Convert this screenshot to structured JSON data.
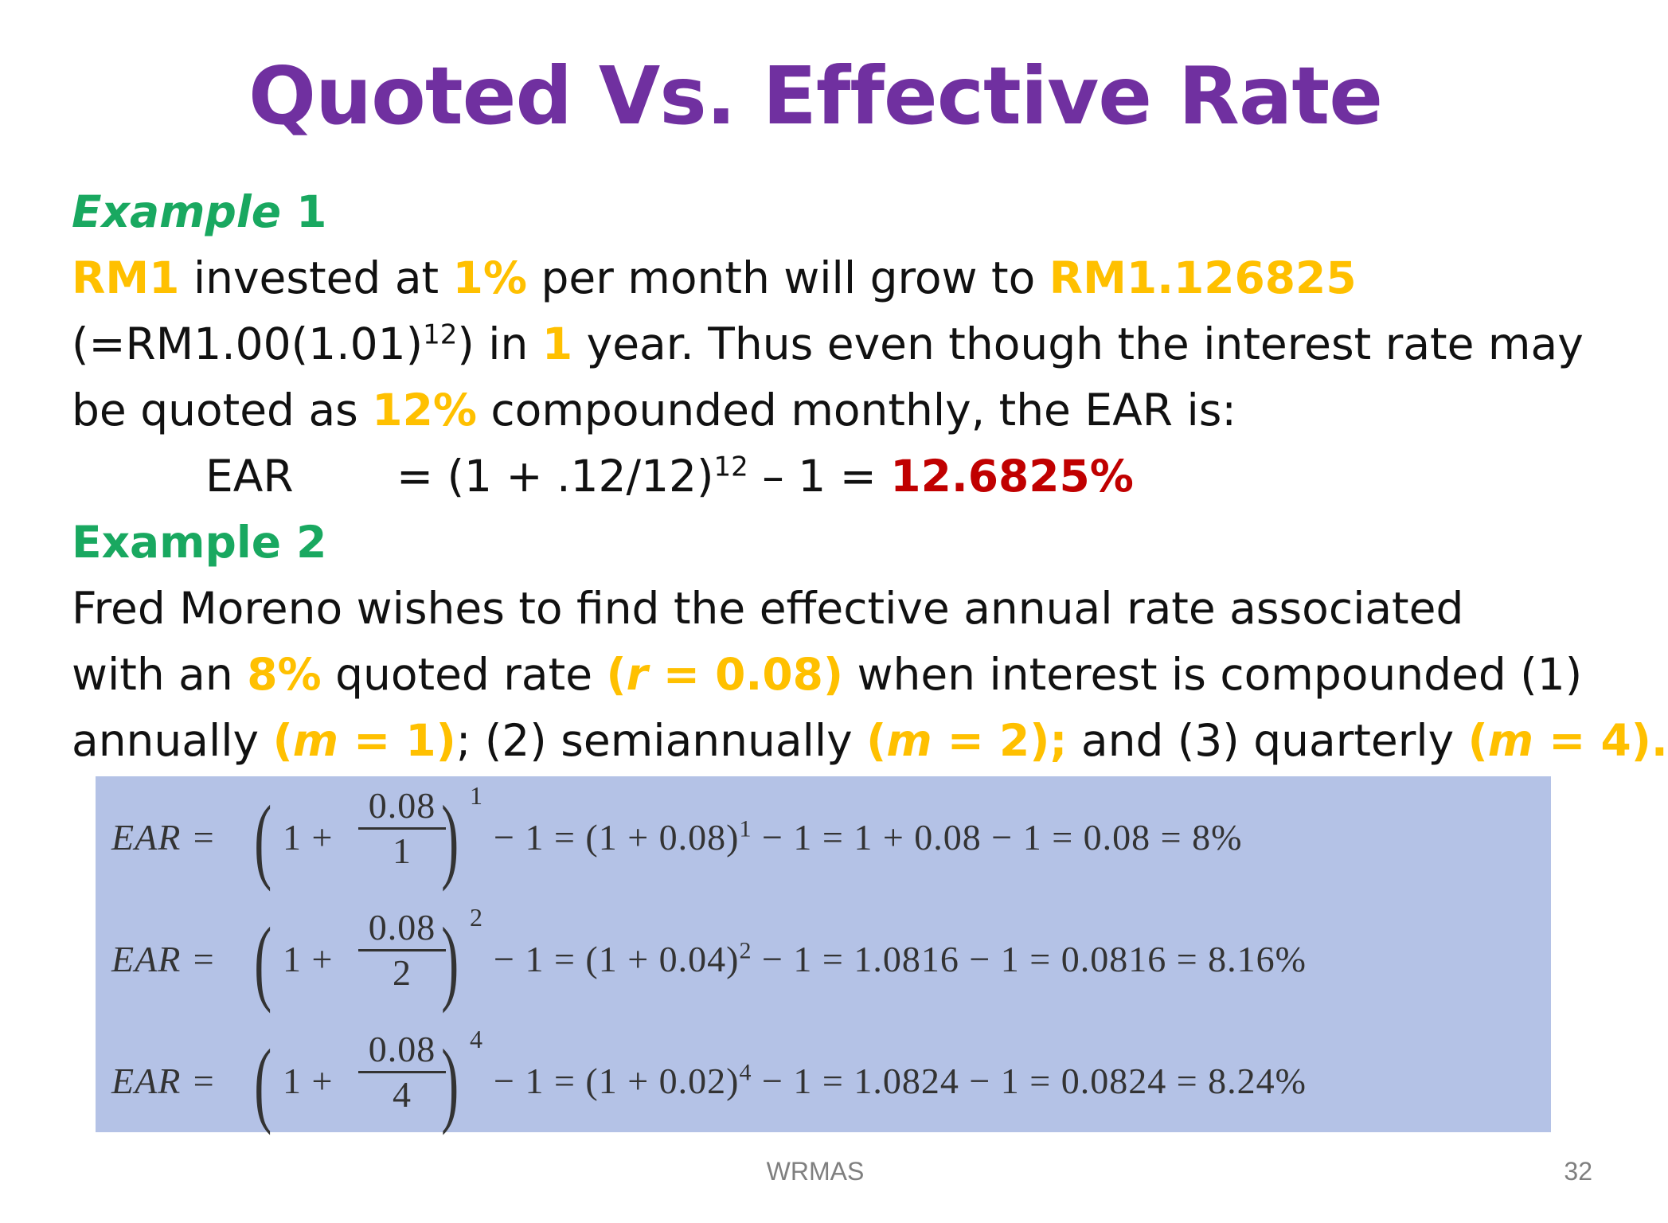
{
  "slide": {
    "title": "Quoted Vs. Effective Rate",
    "page_number": "32",
    "footer": "WRMAS"
  },
  "example1": {
    "heading_word": "Example",
    "heading_num": "1",
    "line1": {
      "a": "RM1",
      "b": " invested at ",
      "c": "1%",
      "d": " per month will grow to ",
      "e": "RM1.126825"
    },
    "line2": {
      "a": "(=RM1.00(1.01)",
      "a_sup": "12",
      "b": ") in ",
      "c": "1",
      "d": " year. Thus even though the interest rate may"
    },
    "line3": {
      "a": "be quoted as ",
      "b": "12%",
      "c": " compounded monthly, the  EAR is:"
    },
    "line4": {
      "label": "EAR",
      "a": "= (1 + .12/12)",
      "a_sup": "12",
      "b": " – 1 = ",
      "result": "12.6825%"
    }
  },
  "example2": {
    "heading": "Example 2",
    "line1": "Fred Moreno wishes to find the effective annual rate associated",
    "line2": {
      "a": "with an ",
      "b": "8%",
      "c": " quoted rate ",
      "d_open": "(",
      "d_var": "r",
      "d_rest": " = 0.08)",
      "e": " when interest is compounded (1)"
    },
    "line3": {
      "a": "annually ",
      "b_open": "(",
      "b_var": "m",
      "b_rest": " = 1)",
      "c": "; (2) semiannually ",
      "d_open": "(",
      "d_var": "m",
      "d_rest": " = 2);",
      "e": " and (3) quarterly ",
      "f_open": "(",
      "f_var": "m",
      "f_rest": " = 4)."
    }
  },
  "formulas": [
    {
      "lhs": "EAR =",
      "one": "1 +",
      "numerator": "0.08",
      "denominator": "1",
      "exponent": "1",
      "rhs_a": "− 1 = (1 + 0.08)",
      "rhs_sup": "1",
      "rhs_b": " − 1 = 1 + 0.08 − 1 = 0.08 = 8%"
    },
    {
      "lhs": "EAR =",
      "one": "1 +",
      "numerator": "0.08",
      "denominator": "2",
      "exponent": "2",
      "rhs_a": "− 1 = (1 + 0.04)",
      "rhs_sup": "2",
      "rhs_b": " − 1 = 1.0816 − 1 = 0.0816 = 8.16%"
    },
    {
      "lhs": "EAR =",
      "one": "1 +",
      "numerator": "0.08",
      "denominator": "4",
      "exponent": "4",
      "rhs_a": "− 1 = (1 + 0.02)",
      "rhs_sup": "4",
      "rhs_b": " − 1 = 1.0824 − 1 = 0.0824 = 8.24%"
    }
  ],
  "colors": {
    "title": "#7030a0",
    "heading": "#19a860",
    "highlight": "#ffc000",
    "result": "#c00000",
    "formula_bg": "#b4c2e6"
  }
}
